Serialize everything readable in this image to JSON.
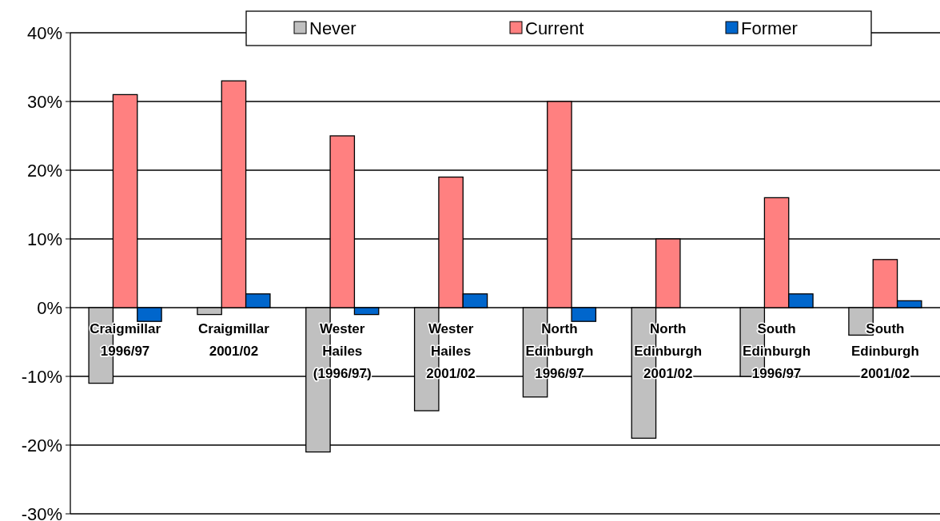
{
  "chart_data": {
    "type": "bar",
    "categories": [
      "Craigmillar\n1996/97",
      "Craigmillar\n2001/02",
      "Wester\nHailes\n(1996/97)",
      "Wester\nHailes\n2001/02",
      "North\nEdinburgh\n1996/97",
      "North\nEdinburgh\n2001/02",
      "South\nEdinburgh\n1996/97",
      "South\nEdinburgh\n2001/02"
    ],
    "series": [
      {
        "name": "Never",
        "color": "#c0c0c0",
        "values": [
          -11,
          -1,
          -21,
          -15,
          -13,
          -19,
          -10,
          -4
        ]
      },
      {
        "name": "Current",
        "color": "#ff8080",
        "values": [
          31,
          33,
          25,
          19,
          30,
          10,
          16,
          7
        ]
      },
      {
        "name": "Former",
        "color": "#0066cc",
        "values": [
          -2,
          2,
          -1,
          2,
          -2,
          0,
          2,
          1
        ]
      }
    ],
    "ylim": [
      -30,
      40
    ],
    "yticks": [
      {
        "value": -30,
        "label": "-30%"
      },
      {
        "value": -20,
        "label": "-20%"
      },
      {
        "value": -10,
        "label": "-10%"
      },
      {
        "value": 0,
        "label": "0%"
      },
      {
        "value": 10,
        "label": "10%"
      },
      {
        "value": 20,
        "label": "20%"
      },
      {
        "value": 30,
        "label": "30%"
      },
      {
        "value": 40,
        "label": "40%"
      }
    ],
    "grid": "y",
    "legend": "top"
  }
}
